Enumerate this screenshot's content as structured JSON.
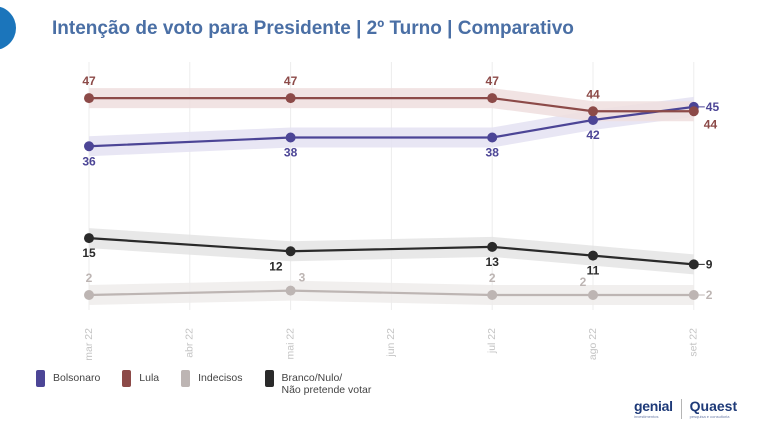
{
  "title": "Intenção de voto para Presidente | 2º Turno | Comparativo",
  "logos": {
    "genial": "genial",
    "genial_sub": "investimentos",
    "quaest": "Quaest",
    "quaest_sub": "pesquisa e consultoria"
  },
  "chart_data": {
    "type": "line",
    "title": "Intenção de voto para Presidente | 2º Turno | Comparativo",
    "x_ticks": [
      "mar 22",
      "abr 22",
      "mai 22",
      "jun 22",
      "jul 22",
      "ago 22",
      "set 22"
    ],
    "ylim": [
      0,
      50
    ],
    "grid": "vertical",
    "legend_position": "bottom-left",
    "series": [
      {
        "name": "Bolsonaro",
        "color": "#4c4596",
        "band": "#e4e2f2",
        "x": [
          "mar 22",
          "mai 22",
          "jul 22",
          "ago 22",
          "set 22"
        ],
        "values": [
          36,
          38,
          38,
          42,
          45
        ],
        "label_pos": [
          "below",
          "below",
          "below",
          "below",
          "right"
        ]
      },
      {
        "name": "Lula",
        "color": "#8c4a48",
        "band": "#eedede",
        "x": [
          "mar 22",
          "mai 22",
          "jul 22",
          "ago 22",
          "set 22"
        ],
        "values": [
          47,
          47,
          47,
          44,
          44
        ],
        "label_pos": [
          "above",
          "above",
          "above",
          "above",
          "below-right"
        ]
      },
      {
        "name": "Indecisos",
        "color": "#bdb5b3",
        "band": "#efeceb",
        "x": [
          "mar 22",
          "mai 22",
          "jul 22",
          "ago 22",
          "set 22"
        ],
        "values": [
          2,
          3,
          2,
          2,
          2
        ],
        "label_pos": [
          "above",
          "above-right",
          "above",
          "above-left",
          "right"
        ]
      },
      {
        "name": "Branco/Nulo/\nNão pretende votar",
        "color": "#2a2a2a",
        "band": "#e4e4e4",
        "x": [
          "mar 22",
          "mai 22",
          "jul 22",
          "ago 22",
          "set 22"
        ],
        "values": [
          15,
          12,
          13,
          11,
          9
        ],
        "label_pos": [
          "below",
          "below-left",
          "below",
          "below",
          "right"
        ]
      }
    ]
  }
}
